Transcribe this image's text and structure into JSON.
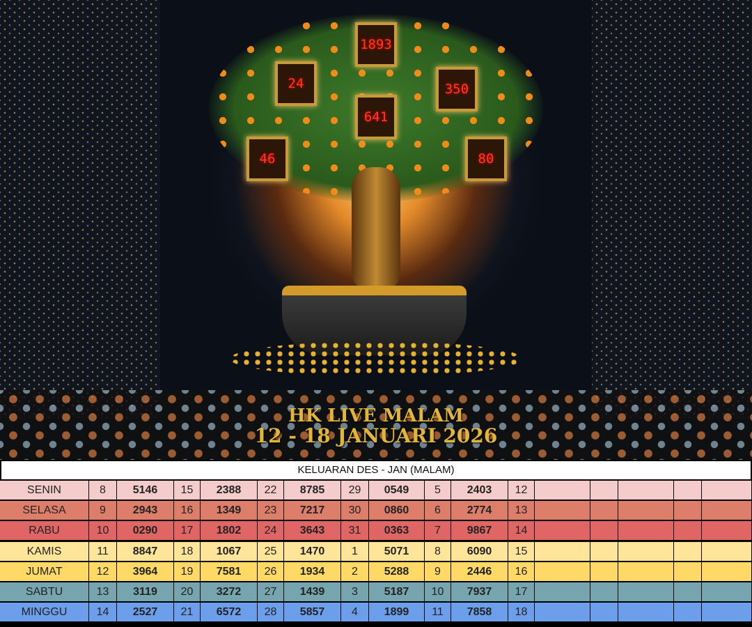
{
  "banner": {
    "numbers": [
      "1893",
      "24",
      "350",
      "641",
      "46",
      "80"
    ],
    "title": "HK LIVE MALAM",
    "subtitle": "12 - 18 JANUARI 2026",
    "title_color": "#e0b53a"
  },
  "table": {
    "header": "KELUARAN DES - JAN (MALAM)",
    "rows": [
      {
        "day": "SENIN",
        "color": "#f4cccc",
        "cells": [
          "8",
          "5146",
          "15",
          "2388",
          "22",
          "8785",
          "29",
          "0549",
          "5",
          "2403",
          "12"
        ]
      },
      {
        "day": "SELASA",
        "color": "#dd7e6b",
        "cells": [
          "9",
          "2943",
          "16",
          "1349",
          "23",
          "7217",
          "30",
          "0860",
          "6",
          "2774",
          "13"
        ]
      },
      {
        "day": "RABU",
        "color": "#e06666",
        "cells": [
          "10",
          "0290",
          "17",
          "1802",
          "24",
          "3643",
          "31",
          "0363",
          "7",
          "9867",
          "14"
        ]
      },
      {
        "day": "KAMIS",
        "color": "#ffe599",
        "cells": [
          "11",
          "8847",
          "18",
          "1067",
          "25",
          "1470",
          "1",
          "5071",
          "8",
          "6090",
          "15"
        ]
      },
      {
        "day": "JUMAT",
        "color": "#ffd966",
        "cells": [
          "12",
          "3964",
          "19",
          "7581",
          "26",
          "1934",
          "2",
          "5288",
          "9",
          "2446",
          "16"
        ]
      },
      {
        "day": "SABTU",
        "color": "#76a5af",
        "cells": [
          "13",
          "3119",
          "20",
          "3272",
          "27",
          "1439",
          "3",
          "5187",
          "10",
          "7937",
          "17"
        ]
      },
      {
        "day": "MINGGU",
        "color": "#6d9eeb",
        "cells": [
          "14",
          "2527",
          "21",
          "6572",
          "28",
          "5857",
          "4",
          "1899",
          "11",
          "7858",
          "18"
        ]
      }
    ]
  }
}
